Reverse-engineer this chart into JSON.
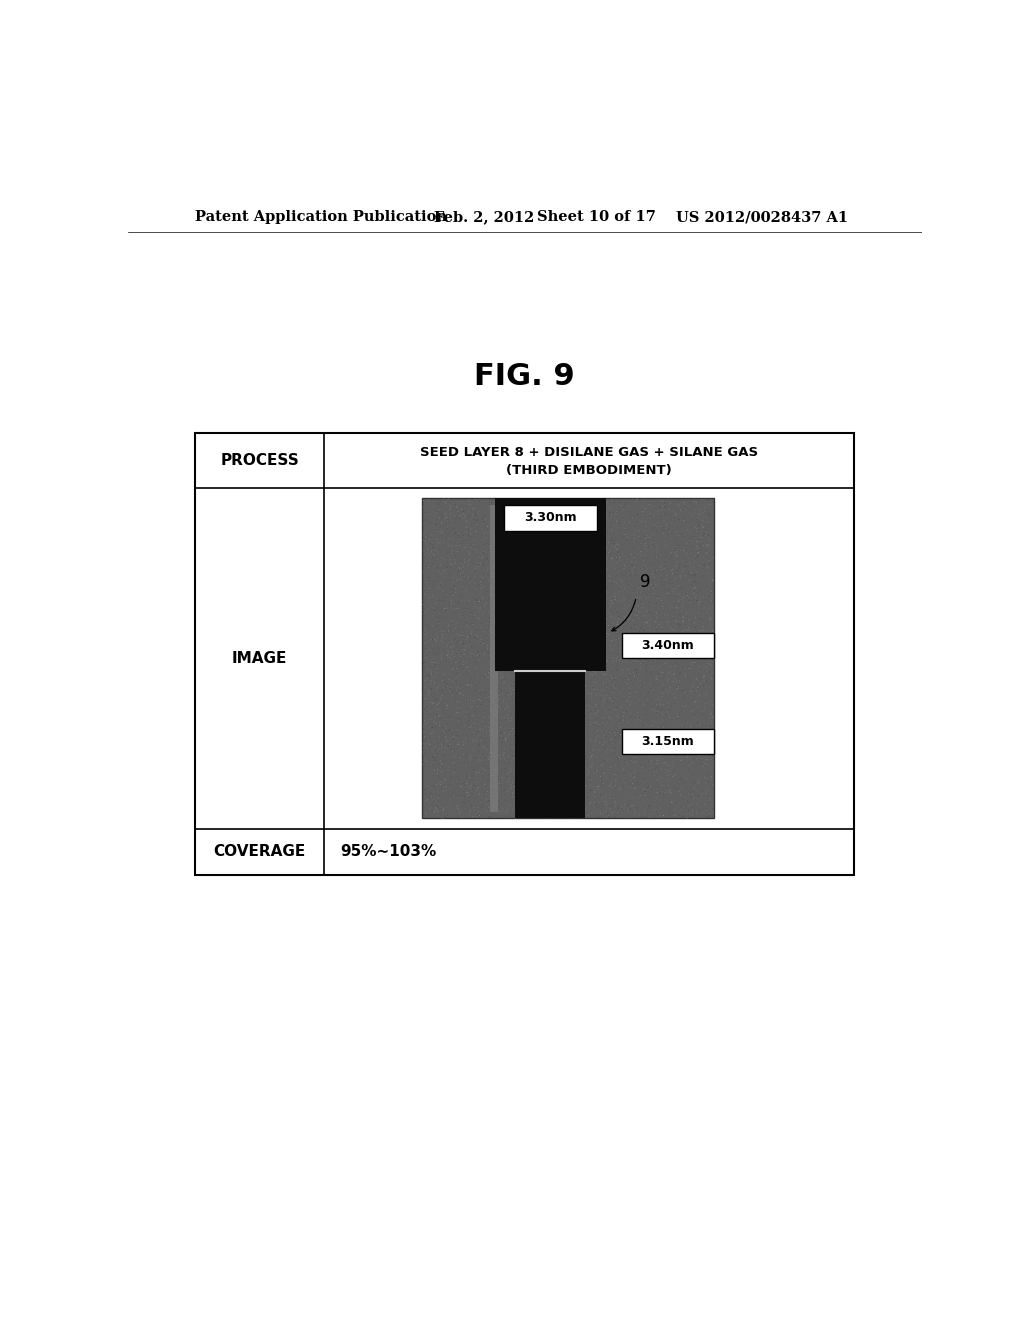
{
  "bg_color": "#ffffff",
  "header_text": "Patent Application Publication",
  "header_date": "Feb. 2, 2012",
  "header_sheet": "Sheet 10 of 17",
  "header_patent": "US 2012/0028437 A1",
  "fig_title": "FIG. 9",
  "table": {
    "process_label": "PROCESS",
    "process_value_line1": "SEED LAYER 8 + DISILANE GAS + SILANE GAS",
    "process_value_line2": "(THIRD EMBODIMENT)",
    "image_label": "IMAGE",
    "coverage_label": "COVERAGE",
    "coverage_value": "95%∼103%"
  }
}
